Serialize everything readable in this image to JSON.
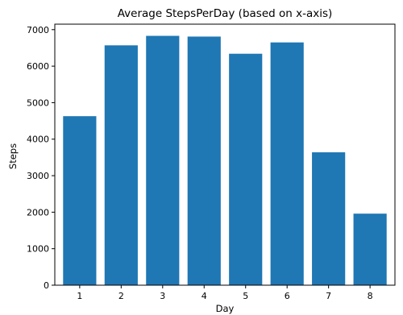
{
  "chart_data": {
    "type": "bar",
    "title": "Average StepsPerDay (based on x-axis)",
    "xlabel": "Day",
    "ylabel": "Steps",
    "categories": [
      "1",
      "2",
      "3",
      "4",
      "5",
      "6",
      "7",
      "8"
    ],
    "values": [
      4630,
      6570,
      6830,
      6810,
      6340,
      6650,
      3640,
      1960
    ],
    "ylim": [
      0,
      7150
    ],
    "yticks": [
      0,
      1000,
      2000,
      3000,
      4000,
      5000,
      6000,
      7000
    ],
    "ytick_labels": [
      "0",
      "1000",
      "2000",
      "3000",
      "4000",
      "5000",
      "6000",
      "7000"
    ],
    "bar_color": "#1f77b4",
    "grid": false,
    "legend": "none"
  }
}
